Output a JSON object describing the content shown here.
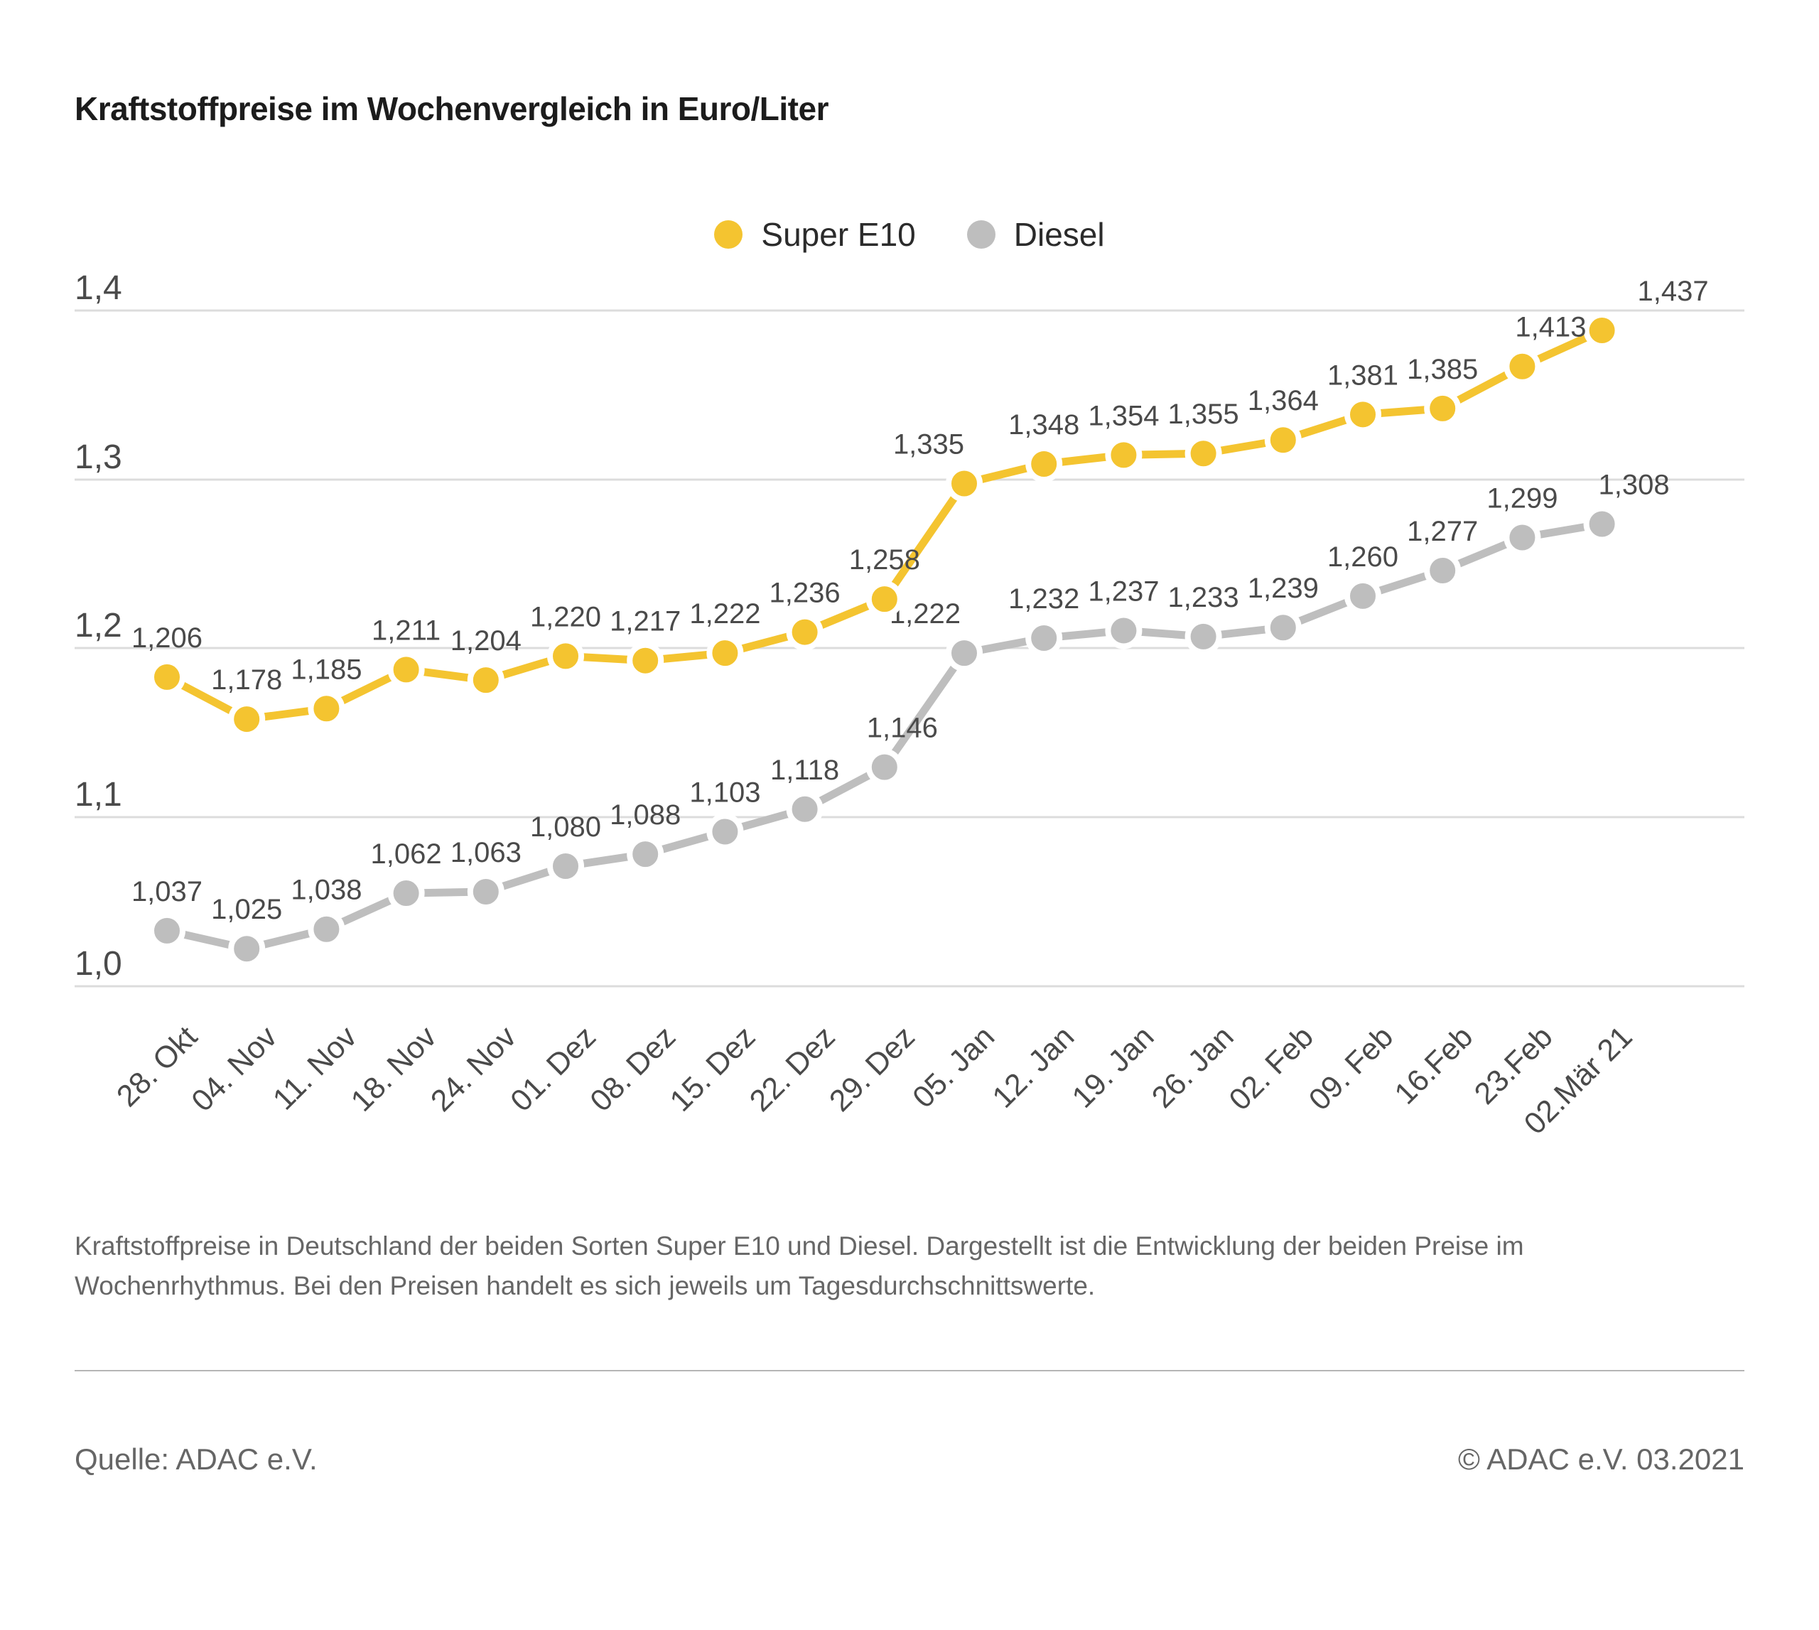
{
  "title": "Kraftstoffpreise im Wochenvergleich in Euro/Liter",
  "colors": {
    "super_e10": "#F4C430",
    "diesel": "#BEBEBE",
    "grid": "#DCDCDC",
    "text": "#4A4A4A"
  },
  "chart_data": {
    "type": "line",
    "title": "Kraftstoffpreise im Wochenvergleich in Euro/Liter",
    "xlabel": "",
    "ylabel": "Euro/Liter",
    "ylim": [
      1.0,
      1.4
    ],
    "grid": true,
    "legend_position": "top-center",
    "ytick_labels": [
      "1,0",
      "1,1",
      "1,2",
      "1,3",
      "1,4"
    ],
    "categories": [
      "28. Okt",
      "04. Nov",
      "11. Nov",
      "18. Nov",
      "24. Nov",
      "01. Dez",
      "08. Dez",
      "15. Dez",
      "22. Dez",
      "29. Dez",
      "05. Jan",
      "12. Jan",
      "19. Jan",
      "26. Jan",
      "02. Feb",
      "09. Feb",
      "16.Feb",
      "23.Feb",
      "02.Mär 21"
    ],
    "series": [
      {
        "name": "Super E10",
        "color_key": "super_e10",
        "values": [
          1.206,
          1.178,
          1.185,
          1.211,
          1.204,
          1.22,
          1.217,
          1.222,
          1.236,
          1.258,
          1.335,
          1.348,
          1.354,
          1.355,
          1.364,
          1.381,
          1.385,
          1.413,
          1.437
        ]
      },
      {
        "name": "Diesel",
        "color_key": "diesel",
        "values": [
          1.037,
          1.025,
          1.038,
          1.062,
          1.063,
          1.08,
          1.088,
          1.103,
          1.118,
          1.146,
          1.222,
          1.232,
          1.237,
          1.233,
          1.239,
          1.26,
          1.277,
          1.299,
          1.308
        ]
      }
    ]
  },
  "caption": {
    "lines": [
      "Kraftstoffpreise in Deutschland der beiden Sorten Super E10 und Diesel. Dargestellt ist die Entwicklung der beiden Preise im",
      "Wochenrhythmus. Bei den Preisen handelt es sich jeweils um Tagesdurchschnittswerte."
    ]
  },
  "footer": {
    "source": "Quelle: ADAC e.V.",
    "copyright": "© ADAC e.V. 03.2021"
  }
}
